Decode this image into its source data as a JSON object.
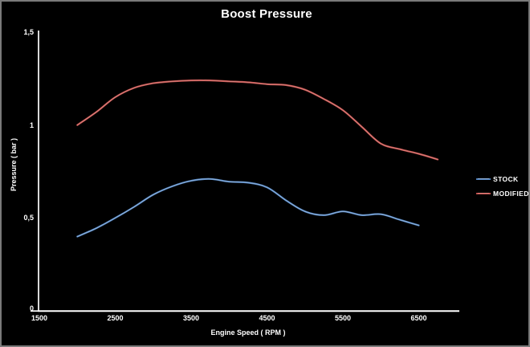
{
  "frame": {
    "border_color": "#7a7a7a",
    "background_color": "#000000",
    "text_color": "#ffffff"
  },
  "chart_data": {
    "type": "line",
    "title": "Boost Pressure",
    "xlabel": "Engine Speed ( RPM )",
    "ylabel": "Pressure ( bar )",
    "xlim": [
      1500,
      7050
    ],
    "ylim": [
      0,
      1.5
    ],
    "x_ticks": [
      1500,
      2500,
      3500,
      4500,
      5500,
      6500
    ],
    "x_tick_labels": [
      "1500",
      "2500",
      "3500",
      "4500",
      "5500",
      "6500"
    ],
    "y_ticks": [
      0,
      0.5,
      1,
      1.5
    ],
    "y_tick_labels": [
      "0",
      "0,5",
      "1",
      "1,5"
    ],
    "grid": false,
    "legend_position": "right",
    "axis_color": "#ffffff",
    "series": [
      {
        "name": "STOCK",
        "color": "#4F81BD",
        "highlight": "#A9C6E8",
        "x": [
          2000,
          2250,
          2500,
          2750,
          3000,
          3250,
          3500,
          3750,
          4000,
          4250,
          4500,
          4750,
          5000,
          5250,
          5500,
          5750,
          6000,
          6250,
          6500
        ],
        "values": [
          0.4,
          0.445,
          0.5,
          0.56,
          0.625,
          0.67,
          0.7,
          0.71,
          0.695,
          0.69,
          0.665,
          0.595,
          0.535,
          0.515,
          0.535,
          0.515,
          0.52,
          0.49,
          0.46
        ]
      },
      {
        "name": "MODIFIED",
        "color": "#C0504D",
        "highlight": "#E2938E",
        "x": [
          2000,
          2250,
          2500,
          2750,
          3000,
          3250,
          3500,
          3750,
          4000,
          4250,
          4500,
          4750,
          5000,
          5250,
          5500,
          5750,
          6000,
          6250,
          6500,
          6750
        ],
        "values": [
          1.0,
          1.07,
          1.15,
          1.2,
          1.225,
          1.235,
          1.24,
          1.24,
          1.235,
          1.23,
          1.22,
          1.215,
          1.19,
          1.14,
          1.08,
          0.99,
          0.9,
          0.87,
          0.845,
          0.815
        ]
      }
    ]
  }
}
